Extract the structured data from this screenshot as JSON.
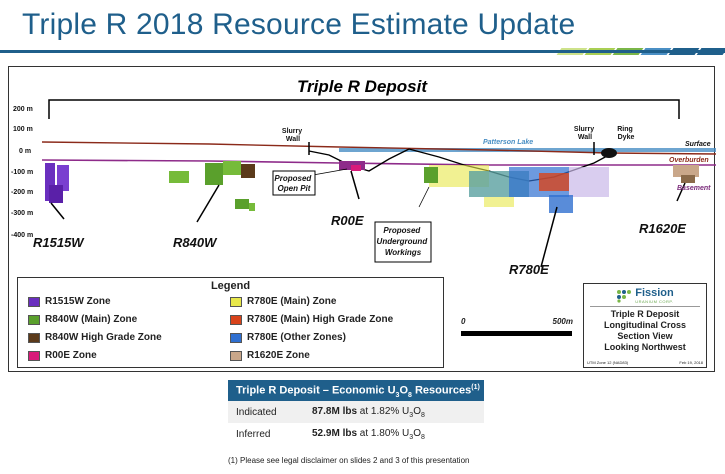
{
  "header": {
    "title": "Triple R 2018 Resource Estimate Update",
    "accent_colors": [
      "#7ab648",
      "#a9cf54",
      "#4a8fc4",
      "#1f5f8b",
      "#cde28a"
    ]
  },
  "section": {
    "title": "Triple R Deposit",
    "elevation_labels": [
      "200 m",
      "100 m",
      "0 m",
      "-100 m",
      "-200 m",
      "-300 m",
      "-400 m"
    ],
    "zone_labels": {
      "r1515w": "R1515W",
      "r840w": "R840W",
      "r00e": "R00E",
      "r780e": "R780E",
      "r1620e": "R1620E"
    },
    "features": {
      "slurry_wall_left": [
        "Slurry",
        "Wall"
      ],
      "slurry_wall_right": [
        "Slurry",
        "Wall"
      ],
      "ring_dyke": [
        "Ring",
        "Dyke"
      ],
      "patterson_lake": "Patterson Lake",
      "surface": "Surface",
      "overburden": "Overburden",
      "basement": "Basement",
      "open_pit": [
        "Proposed",
        "Open Pit"
      ],
      "underground": [
        "Proposed",
        "Underground",
        "Workings"
      ]
    },
    "colors": {
      "surface_line": "#8b2a1a",
      "overburden_line": "#8e2b8a",
      "lake": "#4a8fc4",
      "basement_text": "#7a2a7a"
    }
  },
  "legend": {
    "title": "Legend",
    "items": [
      {
        "label": "R1515W Zone",
        "color": "#6a2fbf"
      },
      {
        "label": "R840W (Main) Zone",
        "color": "#5aa02c"
      },
      {
        "label": "R840W High Grade Zone",
        "color": "#5b3a1a"
      },
      {
        "label": "R00E Zone",
        "color": "#d81b7a"
      },
      {
        "label": "R780E (Main) Zone",
        "color": "#e8e84a"
      },
      {
        "label": "R780E (Main) High Grade Zone",
        "color": "#d8431a"
      },
      {
        "label": "R780E (Other Zones)",
        "color": "#2f6fd0"
      },
      {
        "label": "R1620E Zone",
        "color": "#c9a78a"
      }
    ]
  },
  "scale_bar": {
    "start": "0",
    "end": "500m"
  },
  "title_box": {
    "logo_word": "Fission",
    "logo_sub": "URANIUM CORP.",
    "lines": [
      "Triple R Deposit",
      "Longitudinal Cross",
      "Section View",
      "Looking Northwest"
    ],
    "footer_left": "UTM Zone 12 (NAD83)",
    "footer_right": "Feb 19, 2018"
  },
  "resources": {
    "title_main": "Triple R Deposit – Economic U",
    "title_sub1": "3",
    "title_mid": "O",
    "title_sub2": "8",
    "title_end": " Resources",
    "title_note": "(1)",
    "rows": [
      {
        "category": "Indicated",
        "amount": "87.8M lbs",
        "grade_text": " at 1.82% U",
        "s1": "3",
        "o": "O",
        "s2": "8"
      },
      {
        "category": "Inferred",
        "amount": "52.9M lbs",
        "grade_text": " at 1.80% U",
        "s1": "3",
        "o": "O",
        "s2": "8"
      }
    ]
  },
  "footnote": "(1)    Please see legal disclaimer on slides 2 and 3 of this presentation"
}
